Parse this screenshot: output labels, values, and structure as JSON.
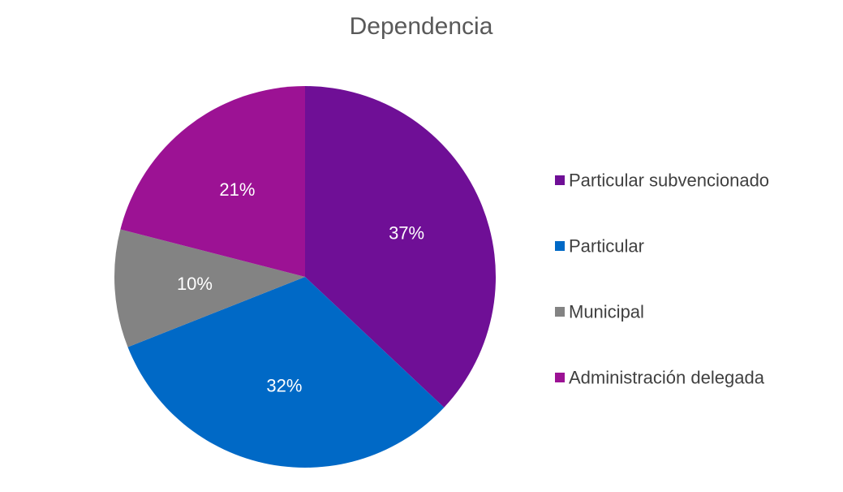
{
  "chart_data": {
    "type": "pie",
    "title": "Dependencia",
    "categories": [
      "Particular subvencionado",
      "Particular",
      "Municipal",
      "Administración delegada"
    ],
    "values": [
      37,
      32,
      10,
      21
    ],
    "labels": [
      "37%",
      "32%",
      "10%",
      "21%"
    ],
    "colors": [
      "#6f0f96",
      "#0069c6",
      "#838383",
      "#9c1294"
    ],
    "legend_position": "right",
    "start_angle": "12 o'clock",
    "direction": "clockwise"
  }
}
